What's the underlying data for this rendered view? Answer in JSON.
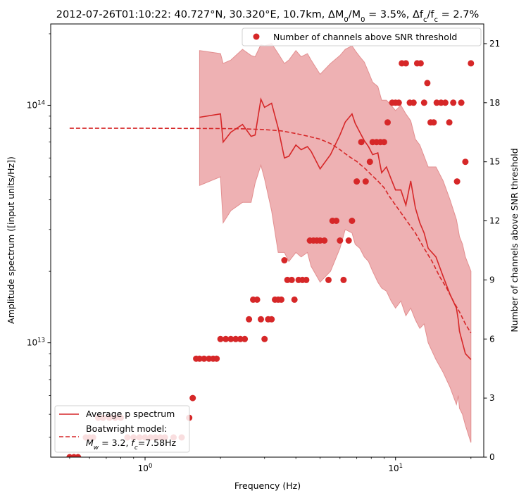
{
  "chart_data": {
    "type": "line",
    "title": "2012-07-26T01:10:22: 40.727°N, 30.320°E, 10.7km, ΔM₀/M₀ = 3.5%, Δf_c/f_c = 2.7%",
    "title_parts": {
      "head": "2012-07-26T01:10:22: 40.727°N, 30.320°E, 10.7km, ",
      "dm": "ΔM",
      "dm_sub": "0",
      "slash": "/M",
      "dm_sub2": "0",
      "dm_val": " = 3.5%, ",
      "df": "Δf",
      "df_sub": "c",
      "df_slash": "/f",
      "df_sub2": "c",
      "df_val": " = 2.7%"
    },
    "xlabel": "Frequency (Hz)",
    "ylabel_left": "Amplitude spectrum ([input units/Hz])",
    "ylabel_right": "Number of channels above SNR threshold",
    "x_scale": "log",
    "y_left_scale": "log",
    "xlim": [
      0.42,
      22.5
    ],
    "ylim_left": [
      3300000000000.0,
      220000000000000.0
    ],
    "ylim_right": [
      0,
      22
    ],
    "x_ticks": [
      {
        "value": 1,
        "base": "10",
        "exp": "0"
      },
      {
        "value": 10,
        "base": "10",
        "exp": "1"
      }
    ],
    "y_left_ticks": [
      {
        "value": 10000000000000.0,
        "base": "10",
        "exp": "13"
      },
      {
        "value": 100000000000000.0,
        "base": "10",
        "exp": "14"
      }
    ],
    "y_right_ticks": [
      "0",
      "3",
      "6",
      "9",
      "12",
      "15",
      "18",
      "21"
    ],
    "colors": {
      "series": "#d62728",
      "band": "#eeb1b3",
      "band_edge": "#e28f90"
    },
    "legend_top": {
      "placement": "top-right",
      "label": "Number of channels above SNR threshold"
    },
    "legend_bottom": {
      "placement": "bottom-left",
      "avg_label": "Average p spectrum",
      "model_line1": "Boatwright model:",
      "model_line2_parts": {
        "mw": "M",
        "mw_sub": "w",
        "mid": " = 3.2, ",
        "fc": "f",
        "fc_sub": "c",
        "tail": "=7.58Hz"
      }
    },
    "series": [
      {
        "name": "Average p spectrum",
        "style": "solid",
        "x": [
          1.65,
          2.0,
          2.05,
          2.2,
          2.45,
          2.65,
          2.75,
          2.9,
          3.0,
          3.2,
          3.4,
          3.6,
          3.75,
          4.0,
          4.2,
          4.45,
          4.6,
          5.0,
          5.5,
          6.0,
          6.3,
          6.7,
          6.9,
          7.2,
          7.5,
          7.8,
          8.1,
          8.5,
          8.8,
          9.2,
          9.6,
          10.0,
          10.5,
          11.0,
          11.5,
          12.0,
          12.5,
          13.0,
          13.5,
          14.5,
          15.5,
          16.5,
          17.5,
          17.8,
          18.0,
          18.5,
          19.0,
          20.0
        ],
        "y": [
          89000000000000.0,
          92000000000000.0,
          70000000000000.0,
          77000000000000.0,
          83000000000000.0,
          74000000000000.0,
          75000000000000.0,
          106000000000000.0,
          98000000000000.0,
          102000000000000.0,
          80000000000000.0,
          60000000000000.0,
          61000000000000.0,
          68000000000000.0,
          65000000000000.0,
          67000000000000.0,
          64000000000000.0,
          54000000000000.0,
          62000000000000.0,
          75000000000000.0,
          85000000000000.0,
          92000000000000.0,
          84000000000000.0,
          77000000000000.0,
          71000000000000.0,
          67000000000000.0,
          62000000000000.0,
          63000000000000.0,
          52000000000000.0,
          55000000000000.0,
          49000000000000.0,
          44000000000000.0,
          44000000000000.0,
          38000000000000.0,
          48000000000000.0,
          37000000000000.0,
          32000000000000.0,
          29000000000000.0,
          25000000000000.0,
          23000000000000.0,
          19000000000000.0,
          16000000000000.0,
          14000000000000.0,
          12500000000000.0,
          11200000000000.0,
          10000000000000.0,
          9000000000000.0,
          8500000000000.0
        ]
      },
      {
        "name": "Boatwright model",
        "style": "dashed",
        "x": [
          0.5,
          0.8,
          1.0,
          1.5,
          2.0,
          2.5,
          3.0,
          3.5,
          4.0,
          4.5,
          5.0,
          5.5,
          6.0,
          6.5,
          7.0,
          7.58,
          8.0,
          8.5,
          9.0,
          9.5,
          10.0,
          11.0,
          12.0,
          13.0,
          14.0,
          15.0,
          16.0,
          17.0,
          18.0,
          19.0,
          20.0
        ],
        "y": [
          80000000000000.0,
          80000000000000.0,
          80000000000000.0,
          79900000000000.0,
          79800000000000.0,
          79600000000000.0,
          79000000000000.0,
          78000000000000.0,
          76000000000000.0,
          74000000000000.0,
          72000000000000.0,
          69000000000000.0,
          65000000000000.0,
          61000000000000.0,
          58000000000000.0,
          54000000000000.0,
          51000000000000.0,
          48000000000000.0,
          45000000000000.0,
          41000000000000.0,
          38000000000000.0,
          33000000000000.0,
          29000000000000.0,
          25000000000000.0,
          22000000000000.0,
          19000000000000.0,
          17000000000000.0,
          15000000000000.0,
          13500000000000.0,
          12000000000000.0,
          11000000000000.0
        ]
      }
    ],
    "band": {
      "x": [
        1.65,
        2.0,
        2.05,
        2.2,
        2.45,
        2.65,
        2.75,
        2.9,
        3.0,
        3.2,
        3.4,
        3.6,
        3.75,
        4.0,
        4.2,
        4.45,
        4.6,
        5.0,
        5.5,
        6.0,
        6.3,
        6.7,
        6.9,
        7.2,
        7.5,
        7.8,
        8.1,
        8.5,
        8.8,
        9.2,
        9.6,
        10.0,
        10.5,
        11.0,
        11.5,
        12.0,
        12.5,
        13.0,
        13.5,
        14.5,
        15.5,
        16.5,
        17.5,
        17.8,
        18.0,
        18.5,
        19.0,
        20.0
      ],
      "upper": [
        170000000000000.0,
        165000000000000.0,
        150000000000000.0,
        155000000000000.0,
        172000000000000.0,
        162000000000000.0,
        160000000000000.0,
        180000000000000.0,
        178000000000000.0,
        182000000000000.0,
        165000000000000.0,
        150000000000000.0,
        155000000000000.0,
        170000000000000.0,
        160000000000000.0,
        165000000000000.0,
        155000000000000.0,
        135000000000000.0,
        150000000000000.0,
        162000000000000.0,
        172000000000000.0,
        178000000000000.0,
        170000000000000.0,
        160000000000000.0,
        152000000000000.0,
        138000000000000.0,
        125000000000000.0,
        120000000000000.0,
        105000000000000.0,
        105000000000000.0,
        100000000000000.0,
        95000000000000.0,
        100000000000000.0,
        92000000000000.0,
        86000000000000.0,
        72000000000000.0,
        68000000000000.0,
        61000000000000.0,
        55000000000000.0,
        55000000000000.0,
        48000000000000.0,
        40000000000000.0,
        33000000000000.0,
        30000000000000.0,
        28000000000000.0,
        26000000000000.0,
        23000000000000.0,
        20000000000000.0
      ],
      "lower": [
        46000000000000.0,
        50000000000000.0,
        32000000000000.0,
        36000000000000.0,
        39000000000000.0,
        39000000000000.0,
        47000000000000.0,
        56000000000000.0,
        49000000000000.0,
        36000000000000.0,
        24000000000000.0,
        24000000000000.0,
        22000000000000.0,
        24000000000000.0,
        23000000000000.0,
        24000000000000.0,
        21000000000000.0,
        18000000000000.0,
        20000000000000.0,
        25000000000000.0,
        30000000000000.0,
        29000000000000.0,
        26000000000000.0,
        25000000000000.0,
        23000000000000.0,
        22000000000000.0,
        20000000000000.0,
        18000000000000.0,
        17000000000000.0,
        16500000000000.0,
        15000000000000.0,
        14000000000000.0,
        15000000000000.0,
        13000000000000.0,
        14000000000000.0,
        12500000000000.0,
        11500000000000.0,
        12000000000000.0,
        10000000000000.0,
        8500000000000.0,
        7500000000000.0,
        6500000000000.0,
        5500000000000.0,
        6000000000000.0,
        5300000000000.0,
        5000000000000.0,
        4500000000000.0,
        3800000000000.0
      ]
    },
    "scatter": {
      "name": "Number of channels above SNR threshold",
      "x": [
        0.5,
        0.52,
        0.54,
        0.58,
        0.6,
        0.62,
        0.65,
        0.68,
        0.72,
        0.76,
        0.8,
        0.85,
        0.9,
        0.95,
        1.0,
        1.05,
        1.1,
        1.15,
        1.2,
        1.3,
        1.4,
        1.5,
        1.55,
        1.6,
        1.65,
        1.72,
        1.8,
        1.87,
        1.93,
        2.0,
        2.1,
        2.2,
        2.3,
        2.4,
        2.5,
        2.6,
        2.7,
        2.8,
        2.9,
        3.0,
        3.1,
        3.2,
        3.3,
        3.4,
        3.5,
        3.6,
        3.7,
        3.85,
        3.95,
        4.1,
        4.25,
        4.4,
        4.55,
        4.7,
        4.85,
        5.0,
        5.2,
        5.4,
        5.6,
        5.8,
        6.0,
        6.2,
        6.5,
        6.7,
        7.0,
        7.3,
        7.6,
        7.9,
        8.1,
        8.4,
        8.7,
        9.0,
        9.3,
        9.7,
        10.0,
        10.3,
        10.6,
        11.0,
        11.4,
        11.8,
        12.2,
        12.6,
        13.0,
        13.4,
        13.8,
        14.2,
        14.6,
        15.2,
        15.8,
        16.4,
        17.0,
        17.6,
        18.3,
        19.0,
        20.0
      ],
      "y": [
        0,
        0,
        0,
        1,
        1,
        1,
        2,
        2,
        2,
        2,
        2,
        1,
        1,
        1,
        1,
        1,
        1,
        1,
        1,
        1,
        1,
        2,
        3,
        5,
        5,
        5,
        5,
        5,
        5,
        6,
        6,
        6,
        6,
        6,
        6,
        7,
        8,
        8,
        7,
        6,
        7,
        7,
        8,
        8,
        8,
        10,
        9,
        9,
        8,
        9,
        9,
        9,
        11,
        11,
        11,
        11,
        11,
        9,
        12,
        12,
        11,
        9,
        11,
        12,
        14,
        16,
        14,
        15,
        16,
        16,
        16,
        16,
        17,
        18,
        18,
        18,
        20,
        20,
        18,
        18,
        20,
        20,
        18,
        19,
        17,
        17,
        18,
        18,
        18,
        17,
        18,
        14,
        18,
        15,
        20
      ]
    }
  }
}
